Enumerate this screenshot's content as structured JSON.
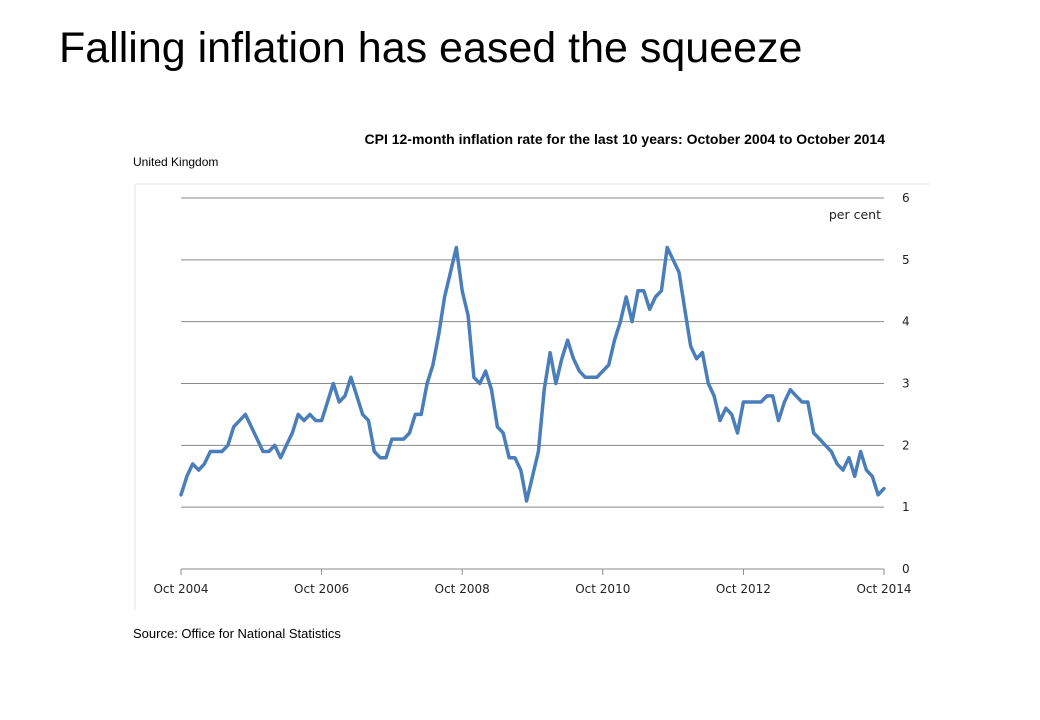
{
  "slide": {
    "title": "Falling inflation has eased the squeeze"
  },
  "chart_data": {
    "type": "line",
    "title": "CPI 12-month inflation rate for the last 10 years: October 2004 to October 2014",
    "subtitle": "United Kingdom",
    "source": "Source: Office for National Statistics",
    "unit_label": "per cent",
    "xlabel": "",
    "ylabel": "",
    "ylim": [
      0,
      6
    ],
    "yticks": [
      0,
      1,
      2,
      3,
      4,
      5,
      6
    ],
    "x_tick_labels": [
      "Oct 2004",
      "Oct 2006",
      "Oct 2008",
      "Oct 2010",
      "Oct 2012",
      "Oct 2014"
    ],
    "grid": true,
    "y_axis_position": "right",
    "line_color": "#4a7ebb",
    "x": [
      "2004-10",
      "2004-11",
      "2004-12",
      "2005-01",
      "2005-02",
      "2005-03",
      "2005-04",
      "2005-05",
      "2005-06",
      "2005-07",
      "2005-08",
      "2005-09",
      "2005-10",
      "2005-11",
      "2005-12",
      "2006-01",
      "2006-02",
      "2006-03",
      "2006-04",
      "2006-05",
      "2006-06",
      "2006-07",
      "2006-08",
      "2006-09",
      "2006-10",
      "2006-11",
      "2006-12",
      "2007-01",
      "2007-02",
      "2007-03",
      "2007-04",
      "2007-05",
      "2007-06",
      "2007-07",
      "2007-08",
      "2007-09",
      "2007-10",
      "2007-11",
      "2007-12",
      "2008-01",
      "2008-02",
      "2008-03",
      "2008-04",
      "2008-05",
      "2008-06",
      "2008-07",
      "2008-08",
      "2008-09",
      "2008-10",
      "2008-11",
      "2008-12",
      "2009-01",
      "2009-02",
      "2009-03",
      "2009-04",
      "2009-05",
      "2009-06",
      "2009-07",
      "2009-08",
      "2009-09",
      "2009-10",
      "2009-11",
      "2009-12",
      "2010-01",
      "2010-02",
      "2010-03",
      "2010-04",
      "2010-05",
      "2010-06",
      "2010-07",
      "2010-08",
      "2010-09",
      "2010-10",
      "2010-11",
      "2010-12",
      "2011-01",
      "2011-02",
      "2011-03",
      "2011-04",
      "2011-05",
      "2011-06",
      "2011-07",
      "2011-08",
      "2011-09",
      "2011-10",
      "2011-11",
      "2011-12",
      "2012-01",
      "2012-02",
      "2012-03",
      "2012-04",
      "2012-05",
      "2012-06",
      "2012-07",
      "2012-08",
      "2012-09",
      "2012-10",
      "2012-11",
      "2012-12",
      "2013-01",
      "2013-02",
      "2013-03",
      "2013-04",
      "2013-05",
      "2013-06",
      "2013-07",
      "2013-08",
      "2013-09",
      "2013-10",
      "2013-11",
      "2013-12",
      "2014-01",
      "2014-02",
      "2014-03",
      "2014-04",
      "2014-05",
      "2014-06",
      "2014-07",
      "2014-08",
      "2014-09",
      "2014-10"
    ],
    "series": [
      {
        "name": "",
        "values": [
          1.2,
          1.5,
          1.7,
          1.6,
          1.7,
          1.9,
          1.9,
          1.9,
          2.0,
          2.3,
          2.4,
          2.5,
          2.3,
          2.1,
          1.9,
          1.9,
          2.0,
          1.8,
          2.0,
          2.2,
          2.5,
          2.4,
          2.5,
          2.4,
          2.4,
          2.7,
          3.0,
          2.7,
          2.8,
          3.1,
          2.8,
          2.5,
          2.4,
          1.9,
          1.8,
          1.8,
          2.1,
          2.1,
          2.1,
          2.2,
          2.5,
          2.5,
          3.0,
          3.3,
          3.8,
          4.4,
          4.8,
          5.2,
          4.5,
          4.1,
          3.1,
          3.0,
          3.2,
          2.9,
          2.3,
          2.2,
          1.8,
          1.8,
          1.6,
          1.1,
          1.5,
          1.9,
          2.9,
          3.5,
          3.0,
          3.4,
          3.7,
          3.4,
          3.2,
          3.1,
          3.1,
          3.1,
          3.2,
          3.3,
          3.7,
          4.0,
          4.4,
          4.0,
          4.5,
          4.5,
          4.2,
          4.4,
          4.5,
          5.2,
          5.0,
          4.8,
          4.2,
          3.6,
          3.4,
          3.5,
          3.0,
          2.8,
          2.4,
          2.6,
          2.5,
          2.2,
          2.7,
          2.7,
          2.7,
          2.7,
          2.8,
          2.8,
          2.4,
          2.7,
          2.9,
          2.8,
          2.7,
          2.7,
          2.2,
          2.1,
          2.0,
          1.9,
          1.7,
          1.6,
          1.8,
          1.5,
          1.9,
          1.6,
          1.5,
          1.2,
          1.3
        ]
      }
    ]
  }
}
